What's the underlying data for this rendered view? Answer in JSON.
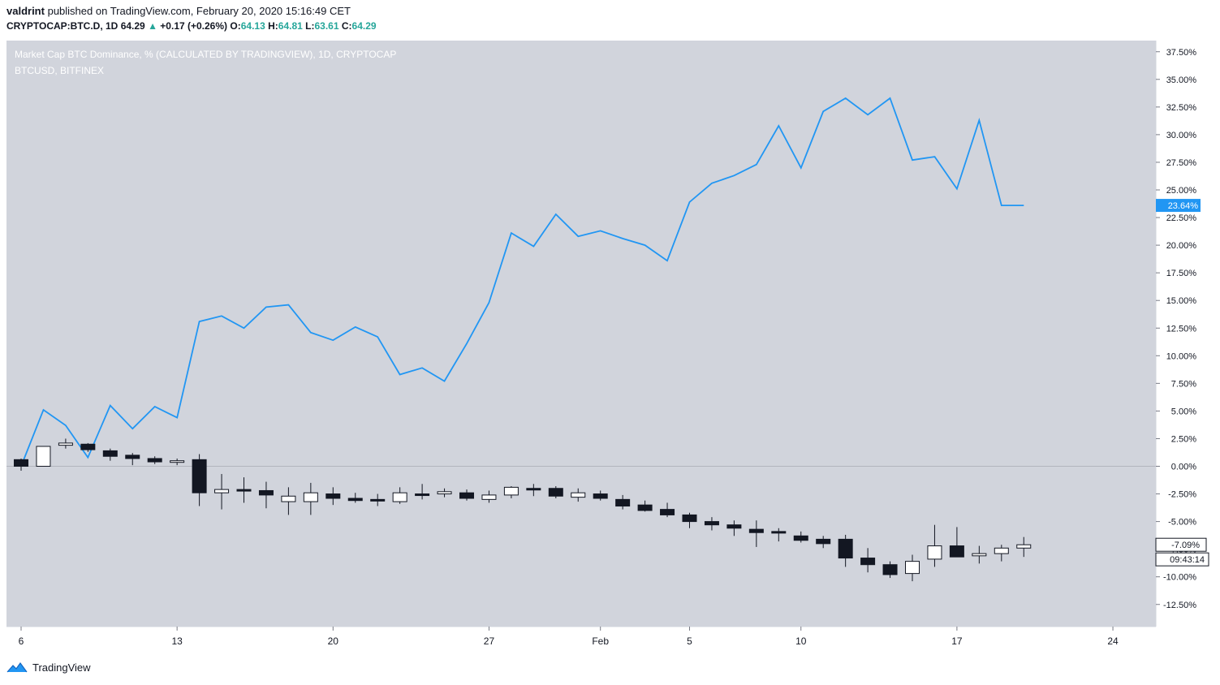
{
  "header": {
    "author": "valdrint",
    "published_text": "published on TradingView.com, February 20, 2020 15:16:49 CET"
  },
  "symbol_bar": {
    "symbol": "CRYPTOCAP:BTC.D, 1D",
    "last": "64.29",
    "change_arrow": "▲",
    "change": "+0.17 (+0.26%)",
    "o_label": "O:",
    "o": "64.13",
    "h_label": "H:",
    "h": "64.81",
    "l_label": "L:",
    "l": "63.61",
    "c_label": "C:",
    "c": "64.29"
  },
  "legend": {
    "main": "Market Cap BTC Dominance, % (CALCULATED BY TRADINGVIEW), 1D, CRYPTOCAP",
    "overlay": "BTCUSD, BITFINEX"
  },
  "footer": {
    "brand": "TradingView",
    "logo_icon": "tradingview-logo-icon"
  },
  "colors": {
    "background": "#d1d4dc",
    "line": "#2196f3",
    "bull": "#ffffff",
    "bear": "#131722",
    "up_text": "#26a69a"
  },
  "chart_data": {
    "type": "line",
    "scale": "percent",
    "ylim": [
      -14.5,
      38.5
    ],
    "y_ticks": [
      37.5,
      35,
      32.5,
      30,
      27.5,
      25,
      22.5,
      20,
      17.5,
      15,
      12.5,
      10,
      7.5,
      5,
      2.5,
      0,
      -2.5,
      -5,
      -7.5,
      -10,
      -12.5
    ],
    "y_tick_labels": [
      "37.50%",
      "35.00%",
      "32.50%",
      "30.00%",
      "27.50%",
      "25.00%",
      "22.50%",
      "20.00%",
      "17.50%",
      "15.00%",
      "12.50%",
      "10.00%",
      "7.50%",
      "5.00%",
      "2.50%",
      "0.00%",
      "-2.50%",
      "-5.00%",
      "-7.50%",
      "-10.00%",
      "-12.50%"
    ],
    "x_dates": [
      "2020-01-06",
      "2020-01-07",
      "2020-01-08",
      "2020-01-09",
      "2020-01-10",
      "2020-01-11",
      "2020-01-12",
      "2020-01-13",
      "2020-01-14",
      "2020-01-15",
      "2020-01-16",
      "2020-01-17",
      "2020-01-18",
      "2020-01-19",
      "2020-01-20",
      "2020-01-21",
      "2020-01-22",
      "2020-01-23",
      "2020-01-24",
      "2020-01-25",
      "2020-01-26",
      "2020-01-27",
      "2020-01-28",
      "2020-01-29",
      "2020-01-30",
      "2020-01-31",
      "2020-02-01",
      "2020-02-02",
      "2020-02-03",
      "2020-02-04",
      "2020-02-05",
      "2020-02-06",
      "2020-02-07",
      "2020-02-08",
      "2020-02-09",
      "2020-02-10",
      "2020-02-11",
      "2020-02-12",
      "2020-02-13",
      "2020-02-14",
      "2020-02-15",
      "2020-02-16",
      "2020-02-17",
      "2020-02-18",
      "2020-02-19",
      "2020-02-20"
    ],
    "x_tick_dates": [
      "2020-01-06",
      "2020-01-13",
      "2020-01-20",
      "2020-01-27",
      "2020-02-01",
      "2020-02-05",
      "2020-02-10",
      "2020-02-17",
      "2020-02-24"
    ],
    "x_tick_labels": [
      "6",
      "13",
      "20",
      "27",
      "Feb",
      "5",
      "10",
      "17",
      "24"
    ],
    "series": [
      {
        "name": "BTCUSD, BITFINEX",
        "type": "line",
        "values": [
          0.0,
          5.1,
          3.7,
          0.8,
          5.5,
          3.4,
          5.4,
          4.4,
          13.1,
          13.6,
          12.5,
          14.4,
          14.6,
          12.1,
          11.4,
          12.6,
          11.7,
          8.3,
          8.9,
          7.7,
          11.1,
          14.8,
          21.1,
          19.9,
          22.8,
          20.8,
          21.3,
          20.6,
          20.0,
          18.6,
          23.9,
          25.6,
          26.3,
          27.3,
          30.8,
          27.0,
          32.1,
          33.3,
          31.8,
          33.3,
          27.7,
          28.0,
          25.1,
          31.3,
          23.6,
          23.6
        ],
        "last_label": "23.64%"
      },
      {
        "name": "Market Cap BTC Dominance, % (CALCULATED BY TRADINGVIEW), 1D, CRYPTOCAP",
        "type": "candlestick",
        "candles": [
          {
            "o": 0.6,
            "h": 0.7,
            "l": -0.4,
            "c": 0.0
          },
          {
            "o": 0.0,
            "h": 1.8,
            "l": 0.0,
            "c": 1.8
          },
          {
            "o": 1.9,
            "h": 2.5,
            "l": 1.6,
            "c": 2.1
          },
          {
            "o": 2.0,
            "h": 2.1,
            "l": 1.3,
            "c": 1.5
          },
          {
            "o": 1.4,
            "h": 1.6,
            "l": 0.5,
            "c": 0.9
          },
          {
            "o": 1.0,
            "h": 1.2,
            "l": 0.1,
            "c": 0.7
          },
          {
            "o": 0.7,
            "h": 0.9,
            "l": 0.2,
            "c": 0.4
          },
          {
            "o": 0.5,
            "h": 0.7,
            "l": 0.1,
            "c": 0.5
          },
          {
            "o": 0.6,
            "h": 1.1,
            "l": -3.6,
            "c": -2.4
          },
          {
            "o": -2.4,
            "h": -0.7,
            "l": -3.9,
            "c": -2.1
          },
          {
            "o": -2.1,
            "h": -1.0,
            "l": -3.3,
            "c": -2.2
          },
          {
            "o": -2.2,
            "h": -1.4,
            "l": -3.8,
            "c": -2.6
          },
          {
            "o": -3.2,
            "h": -1.9,
            "l": -4.4,
            "c": -2.7
          },
          {
            "o": -3.2,
            "h": -1.5,
            "l": -4.4,
            "c": -2.4
          },
          {
            "o": -2.5,
            "h": -1.9,
            "l": -3.5,
            "c": -2.9
          },
          {
            "o": -2.9,
            "h": -2.4,
            "l": -3.3,
            "c": -3.1
          },
          {
            "o": -3.0,
            "h": -2.5,
            "l": -3.6,
            "c": -3.1
          },
          {
            "o": -3.2,
            "h": -1.9,
            "l": -3.4,
            "c": -2.4
          },
          {
            "o": -2.5,
            "h": -1.6,
            "l": -3.0,
            "c": -2.6
          },
          {
            "o": -2.5,
            "h": -2.0,
            "l": -2.8,
            "c": -2.3
          },
          {
            "o": -2.4,
            "h": -2.1,
            "l": -3.1,
            "c": -2.9
          },
          {
            "o": -3.0,
            "h": -2.2,
            "l": -3.3,
            "c": -2.6
          },
          {
            "o": -2.6,
            "h": -1.8,
            "l": -2.9,
            "c": -1.9
          },
          {
            "o": -2.0,
            "h": -1.6,
            "l": -2.7,
            "c": -2.1
          },
          {
            "o": -2.0,
            "h": -1.8,
            "l": -2.9,
            "c": -2.7
          },
          {
            "o": -2.8,
            "h": -2.0,
            "l": -3.2,
            "c": -2.4
          },
          {
            "o": -2.5,
            "h": -2.2,
            "l": -3.1,
            "c": -2.9
          },
          {
            "o": -3.0,
            "h": -2.6,
            "l": -3.9,
            "c": -3.6
          },
          {
            "o": -3.5,
            "h": -3.1,
            "l": -4.1,
            "c": -4.0
          },
          {
            "o": -3.9,
            "h": -3.3,
            "l": -4.6,
            "c": -4.4
          },
          {
            "o": -4.4,
            "h": -4.2,
            "l": -5.6,
            "c": -5.0
          },
          {
            "o": -5.0,
            "h": -4.6,
            "l": -5.8,
            "c": -5.3
          },
          {
            "o": -5.3,
            "h": -4.9,
            "l": -6.3,
            "c": -5.6
          },
          {
            "o": -5.7,
            "h": -4.9,
            "l": -7.3,
            "c": -6.0
          },
          {
            "o": -5.9,
            "h": -5.6,
            "l": -6.8,
            "c": -6.0
          },
          {
            "o": -6.3,
            "h": -5.9,
            "l": -6.9,
            "c": -6.7
          },
          {
            "o": -6.6,
            "h": -6.3,
            "l": -7.4,
            "c": -7.0
          },
          {
            "o": -6.6,
            "h": -6.2,
            "l": -9.1,
            "c": -8.3
          },
          {
            "o": -8.3,
            "h": -7.4,
            "l": -9.6,
            "c": -8.9
          },
          {
            "o": -8.9,
            "h": -8.6,
            "l": -10.1,
            "c": -9.8
          },
          {
            "o": -9.7,
            "h": -8.0,
            "l": -10.4,
            "c": -8.6
          },
          {
            "o": -8.4,
            "h": -5.3,
            "l": -9.1,
            "c": -7.2
          },
          {
            "o": -7.2,
            "h": -5.5,
            "l": -8.2,
            "c": -8.2
          },
          {
            "o": -8.1,
            "h": -7.2,
            "l": -8.8,
            "c": -7.9
          },
          {
            "o": -7.9,
            "h": -7.1,
            "l": -8.6,
            "c": -7.4
          },
          {
            "o": -7.4,
            "h": -6.4,
            "l": -8.2,
            "c": -7.1
          }
        ],
        "last_label": "-7.09%",
        "countdown": "09:43:14"
      }
    ]
  }
}
